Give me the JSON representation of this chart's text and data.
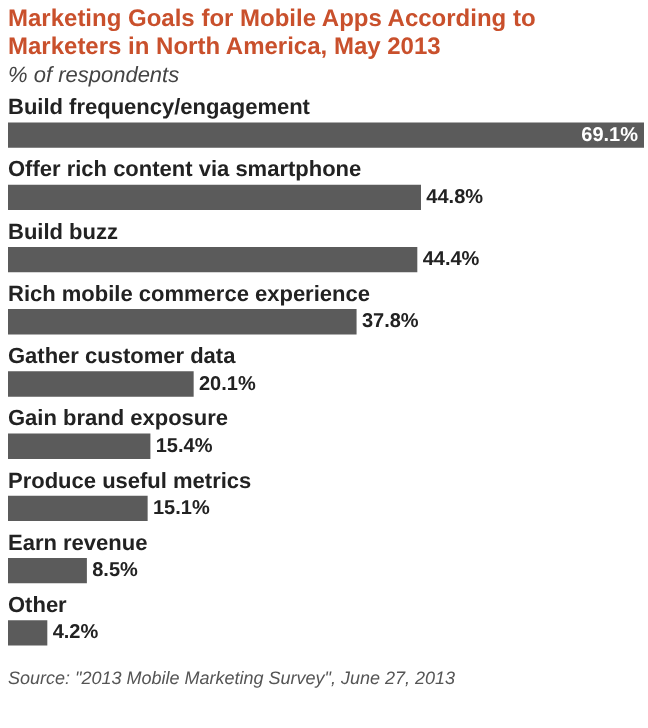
{
  "chart_data": {
    "type": "bar",
    "orientation": "horizontal",
    "title": "Marketing Goals for Mobile Apps According to Marketers in North America, May 2013",
    "subtitle": "% of respondents",
    "categories": [
      "Build frequency/engagement",
      "Offer rich content via smartphone",
      "Build buzz",
      "Rich mobile commerce experience",
      "Gather customer data",
      "Gain brand exposure",
      "Produce useful metrics",
      "Earn revenue",
      "Other"
    ],
    "values": [
      69.1,
      44.8,
      44.4,
      37.8,
      20.1,
      15.4,
      15.1,
      8.5,
      4.2
    ],
    "value_labels": [
      "69.1%",
      "44.8%",
      "44.4%",
      "37.8%",
      "20.1%",
      "15.4%",
      "15.1%",
      "8.5%",
      "4.2%"
    ],
    "color": "#5b5b5b",
    "annotations": [
      "Source: \"2013 Mobile Marketing Survey\", June 27, 2013"
    ]
  }
}
